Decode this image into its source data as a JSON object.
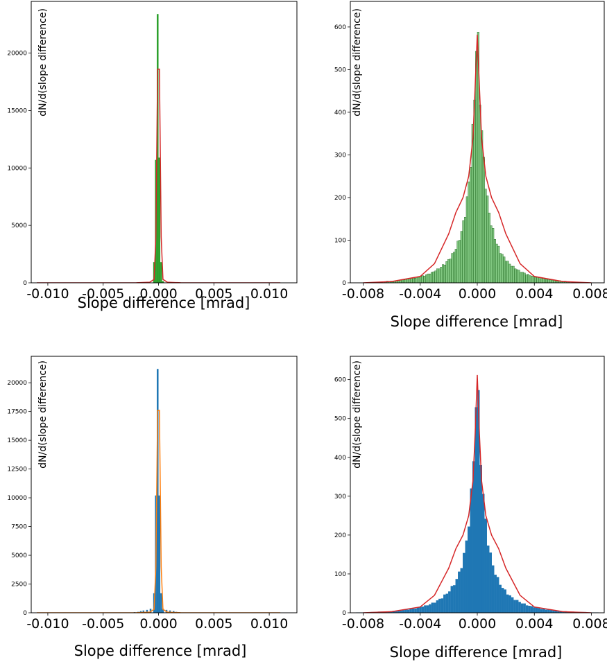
{
  "chart_data": [
    {
      "type": "bar",
      "position": "top-left",
      "xlabel": "Slope difference [mrad]",
      "ylabel": "dN/d(slope difference)",
      "xlim": [
        -0.0115,
        0.0125
      ],
      "ylim": [
        0,
        24500
      ],
      "xticks": [
        -0.01,
        -0.005,
        0.0,
        0.005,
        0.01
      ],
      "xtick_labels": [
        "-0.010",
        "-0.005",
        "0.000",
        "0.005",
        "0.010"
      ],
      "yticks": [
        0,
        5000,
        10000,
        15000,
        20000
      ],
      "ytick_labels": [
        "0",
        "5000",
        "10000",
        "15000",
        "20000"
      ],
      "grid": false,
      "series": [
        {
          "kind": "histogram",
          "color": "#2ca02c",
          "bin_width": 0.00016,
          "x": [
            -0.0004,
            -0.00024,
            -8e-05,
            8e-05,
            0.00024,
            0.0004
          ],
          "values": [
            1800,
            10700,
            23400,
            10900,
            1800,
            150
          ]
        },
        {
          "kind": "line",
          "color": "#d62728",
          "x": [
            -0.011,
            -0.002,
            -0.0008,
            -0.0004,
            -0.00024,
            -8e-05,
            8e-05,
            0.00024,
            0.0004,
            0.0008,
            0.002,
            0.011
          ],
          "y": [
            0,
            5,
            50,
            300,
            4000,
            18600,
            18600,
            4000,
            300,
            50,
            5,
            0
          ]
        }
      ]
    },
    {
      "type": "bar",
      "position": "top-right",
      "xlabel": "Slope difference [mrad]",
      "ylabel": "dN/d(slope difference)",
      "xlim": [
        -0.0089,
        0.0089
      ],
      "ylim": [
        0,
        660
      ],
      "xticks": [
        -0.008,
        -0.004,
        0.0,
        0.004,
        0.008
      ],
      "xtick_labels": [
        "-0.008",
        "-0.004",
        "0.000",
        "0.004",
        "0.008"
      ],
      "yticks": [
        0,
        100,
        200,
        300,
        400,
        500,
        600
      ],
      "ytick_labels": [
        "0",
        "100",
        "200",
        "300",
        "400",
        "500",
        "600"
      ],
      "grid": false,
      "series": [
        {
          "kind": "histogram",
          "color": "#2ca02c",
          "edge_color": "#1a5e1a",
          "bin_range": [
            -0.0065,
            0.0065
          ],
          "bin_count": 100,
          "peak": 628,
          "profile": "two-sided-exponential"
        },
        {
          "kind": "line",
          "color": "#d62728",
          "x": [
            -0.008,
            -0.006,
            -0.004,
            -0.003,
            -0.002,
            -0.0015,
            -0.001,
            -0.0006,
            -0.0003,
            -0.00015,
            0,
            0.00015,
            0.0003,
            0.0006,
            0.001,
            0.0015,
            0.002,
            0.003,
            0.004,
            0.006,
            0.008
          ],
          "y": [
            0,
            3,
            15,
            45,
            115,
            165,
            200,
            250,
            340,
            460,
            582,
            460,
            340,
            250,
            200,
            165,
            115,
            45,
            15,
            3,
            0
          ]
        }
      ]
    },
    {
      "type": "bar",
      "position": "bottom-left",
      "xlabel": "Slope difference [mrad]",
      "ylabel": "dN/d(slope difference)",
      "xlim": [
        -0.0115,
        0.0125
      ],
      "ylim": [
        0,
        22300
      ],
      "xticks": [
        -0.01,
        -0.005,
        0.0,
        0.005,
        0.01
      ],
      "xtick_labels": [
        "-0.010",
        "-0.005",
        "0.000",
        "0.005",
        "0.010"
      ],
      "yticks": [
        0,
        2500,
        5000,
        7500,
        10000,
        12500,
        15000,
        17500,
        20000
      ],
      "ytick_labels": [
        "0",
        "2500",
        "5000",
        "7500",
        "10000",
        "12500",
        "15000",
        "17500",
        "20000"
      ],
      "grid": false,
      "series": [
        {
          "kind": "histogram",
          "color": "#1f77b4",
          "bin_width": 0.00016,
          "x": [
            -0.0024,
            -0.00216,
            -0.00184,
            -0.0016,
            -0.00136,
            -0.00104,
            -0.00072,
            -0.0004,
            -0.00024,
            -8e-05,
            8e-05,
            0.00024,
            0.0004,
            0.00072,
            0.00104,
            0.00136,
            0.0016,
            0.00184,
            0.00216,
            0.0024
          ],
          "values": [
            30,
            60,
            80,
            150,
            200,
            250,
            350,
            1700,
            10200,
            21200,
            10200,
            1700,
            350,
            250,
            200,
            150,
            80,
            60,
            30,
            15
          ]
        },
        {
          "kind": "line",
          "color": "#ff7f0e",
          "x": [
            -0.011,
            -0.002,
            -0.0008,
            -0.0004,
            -0.00024,
            -8e-05,
            8e-05,
            0.00024,
            0.0004,
            0.0008,
            0.002,
            0.011
          ],
          "y": [
            0,
            5,
            50,
            300,
            4000,
            17600,
            17600,
            4000,
            300,
            50,
            5,
            0
          ]
        }
      ]
    },
    {
      "type": "bar",
      "position": "bottom-right",
      "xlabel": "Slope difference [mrad]",
      "ylabel": "dN/d(slope difference)",
      "xlim": [
        -0.0089,
        0.0089
      ],
      "ylim": [
        0,
        660
      ],
      "xticks": [
        -0.008,
        -0.004,
        0.0,
        0.004,
        0.008
      ],
      "xtick_labels": [
        "-0.008",
        "-0.004",
        "0.000",
        "0.004",
        "0.008"
      ],
      "yticks": [
        0,
        100,
        200,
        300,
        400,
        500,
        600
      ],
      "ytick_labels": [
        "0",
        "100",
        "200",
        "300",
        "400",
        "500",
        "600"
      ],
      "grid": false,
      "series": [
        {
          "kind": "histogram",
          "color": "#1f77b4",
          "bin_range": [
            -0.0085,
            0.0085
          ],
          "bin_count": 100,
          "peak": 635,
          "profile": "two-sided-exponential"
        },
        {
          "kind": "line",
          "color": "#d62728",
          "x": [
            -0.008,
            -0.006,
            -0.004,
            -0.003,
            -0.002,
            -0.0015,
            -0.001,
            -0.0006,
            -0.0003,
            -0.00015,
            0,
            0.00015,
            0.0003,
            0.0006,
            0.001,
            0.0015,
            0.002,
            0.003,
            0.004,
            0.006,
            0.008
          ],
          "y": [
            0,
            3,
            15,
            45,
            115,
            165,
            200,
            250,
            340,
            460,
            612,
            460,
            340,
            250,
            200,
            165,
            115,
            45,
            15,
            3,
            0
          ]
        }
      ]
    }
  ]
}
